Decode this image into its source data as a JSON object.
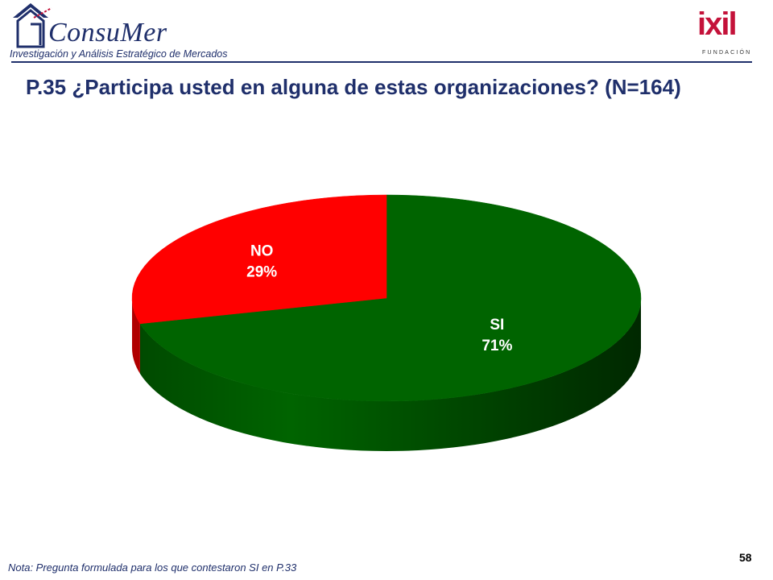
{
  "header": {
    "logo_name": "ConsuMer",
    "logo_tagline": "Investigación y Análisis Estratégico de Mercados",
    "partner_logo_name": "ixil",
    "partner_logo_sub": "FUNDACIÓN"
  },
  "title": "P.35 ¿Participa usted en alguna de estas organizaciones? (N=164)",
  "chart_data": {
    "type": "pie",
    "categories": [
      "NO",
      "SI"
    ],
    "values": [
      29,
      71
    ],
    "labels": [
      "29%",
      "71%"
    ],
    "colors": [
      "#ff0000",
      "#006400"
    ],
    "side_colors": [
      "#b00000",
      "#004000"
    ]
  },
  "footnote": "Nota: Pregunta formulada para los que contestaron SI en P.33",
  "page_number": "58"
}
